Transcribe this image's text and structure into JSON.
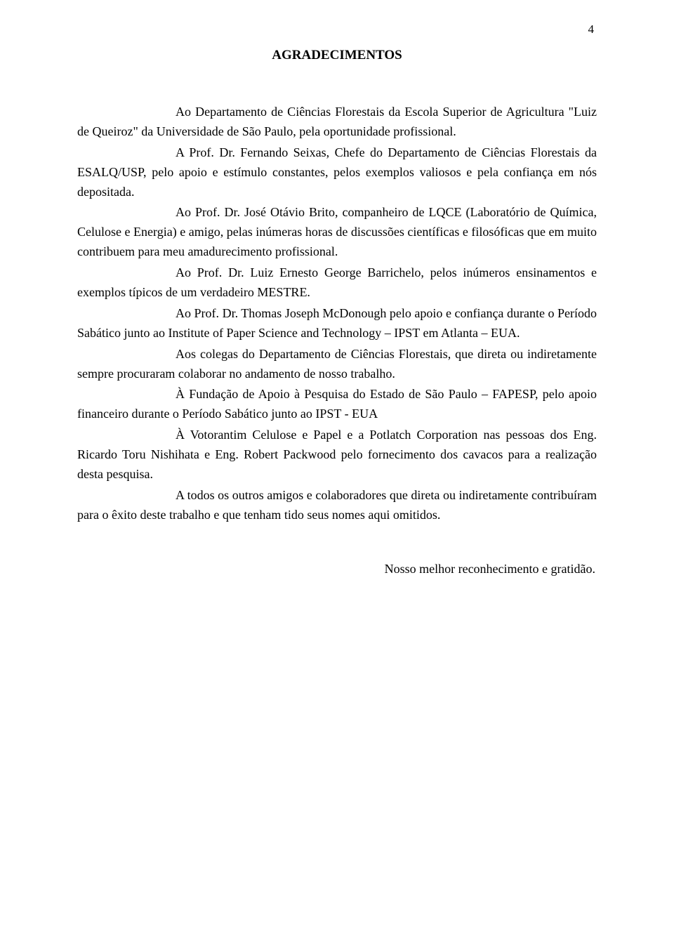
{
  "page_number": "4",
  "title": "AGRADECIMENTOS",
  "paragraphs": [
    "Ao Departamento de Ciências Florestais da Escola Superior de Agricultura \"Luiz de Queiroz\" da Universidade de São Paulo, pela oportunidade profissional.",
    "A Prof. Dr. Fernando Seixas, Chefe do Departamento de Ciências Florestais da ESALQ/USP, pelo apoio e estímulo constantes, pelos exemplos valiosos e pela confiança em nós depositada.",
    "Ao Prof. Dr. José Otávio Brito, companheiro de LQCE (Laboratório de Química, Celulose e Energia) e amigo, pelas inúmeras horas de discussões científicas e filosóficas que em muito contribuem para meu amadurecimento profissional.",
    "Ao Prof. Dr. Luiz Ernesto George Barrichelo, pelos inúmeros ensinamentos e exemplos típicos de um verdadeiro MESTRE.",
    "Ao Prof. Dr. Thomas Joseph McDonough pelo apoio e confiança durante o Período Sabático junto ao Institute of Paper Science and Technology – IPST em Atlanta – EUA.",
    "Aos colegas do Departamento de Ciências Florestais, que direta ou indiretamente sempre procuraram colaborar no andamento de nosso trabalho.",
    "À Fundação de Apoio à Pesquisa do Estado de São Paulo – FAPESP, pelo apoio financeiro durante o Período Sabático junto ao IPST - EUA",
    "À Votorantim Celulose e Papel e a Potlatch Corporation nas pessoas dos Eng. Ricardo Toru Nishihata e Eng. Robert Packwood pelo fornecimento dos cavacos para a realização desta pesquisa.",
    "A todos os outros amigos e colaboradores que direta ou indiretamente contribuíram para o êxito deste trabalho e que tenham tido seus nomes aqui omitidos."
  ],
  "closing": "Nosso melhor reconhecimento e gratidão."
}
